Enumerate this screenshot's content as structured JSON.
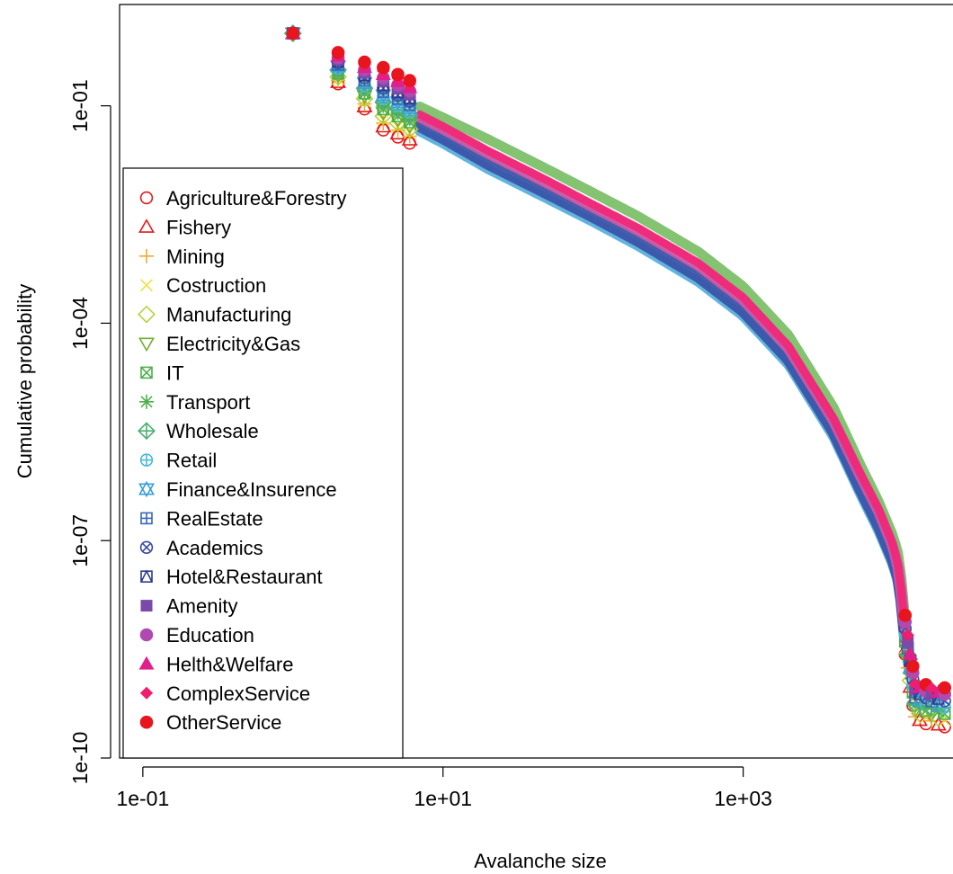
{
  "chart_data": {
    "type": "scatter",
    "xlabel": "Avalanche size",
    "ylabel": "Cumulative probability",
    "x_scale": "log10",
    "y_scale": "log10",
    "xlim": [
      0.07,
      25000
    ],
    "ylim": [
      1e-10,
      2.5
    ],
    "x_ticks": [
      {
        "value": 0.1,
        "label": "1e-01"
      },
      {
        "value": 10,
        "label": "1e+01"
      },
      {
        "value": 1000,
        "label": "1e+03"
      }
    ],
    "y_ticks": [
      {
        "value": 1e-10,
        "label": "1e-10"
      },
      {
        "value": 1e-07,
        "label": "1e-07"
      },
      {
        "value": 0.0001,
        "label": "1e-04"
      },
      {
        "value": 0.1,
        "label": "1e-01"
      }
    ],
    "legend_position": "left",
    "grid": false,
    "series": [
      {
        "name": "Agriculture&Forestry",
        "color": "#e41a1c",
        "marker": "circle-open"
      },
      {
        "name": "Fishery",
        "color": "#e41a1c",
        "marker": "triangle-open"
      },
      {
        "name": "Mining",
        "color": "#f0a830",
        "marker": "plus"
      },
      {
        "name": "Costruction",
        "color": "#f0e040",
        "marker": "cross"
      },
      {
        "name": "Manufacturing",
        "color": "#b8d040",
        "marker": "diamond-open"
      },
      {
        "name": "Electricity&Gas",
        "color": "#70b030",
        "marker": "triangle-down-open"
      },
      {
        "name": "IT",
        "color": "#4daf4a",
        "marker": "square-cross"
      },
      {
        "name": "Transport",
        "color": "#4daf4a",
        "marker": "asterisk"
      },
      {
        "name": "Wholesale",
        "color": "#4db070",
        "marker": "diamond-plus"
      },
      {
        "name": "Retail",
        "color": "#4ab8d8",
        "marker": "circle-plus"
      },
      {
        "name": "Finance&Insurence",
        "color": "#3aa0d8",
        "marker": "star-of-david"
      },
      {
        "name": "RealEstate",
        "color": "#3768b8",
        "marker": "square-plus"
      },
      {
        "name": "Academics",
        "color": "#3a4aa0",
        "marker": "circle-cross"
      },
      {
        "name": "Hotel&Restaurant",
        "color": "#2e3a8c",
        "marker": "square-triangle"
      },
      {
        "name": "Amenity",
        "color": "#7b4aa8",
        "marker": "square-filled"
      },
      {
        "name": "Education",
        "color": "#b04ab0",
        "marker": "circle-filled"
      },
      {
        "name": "Helth&Welfare",
        "color": "#e0208a",
        "marker": "triangle-filled"
      },
      {
        "name": "ComplexService",
        "color": "#f01e6e",
        "marker": "diamond-filled"
      },
      {
        "name": "OtherService",
        "color": "#e8141e",
        "marker": "circle-filled"
      }
    ],
    "curves": {
      "x": [
        1,
        2,
        3,
        4,
        5,
        7,
        10,
        20,
        50,
        100,
        200,
        500,
        1000,
        2000,
        4000,
        6000,
        8000,
        10000,
        11000,
        12000,
        14000,
        20000
      ],
      "upper": [
        1.0,
        0.4,
        0.22,
        0.15,
        0.12,
        0.085,
        0.06,
        0.03,
        0.0115,
        0.0055,
        0.0026,
        0.00085,
        0.00028,
        6e-05,
        6e-06,
        1e-06,
        3e-07,
        1e-07,
        5e-08,
        7e-09,
        6e-10,
        5e-10
      ],
      "center": [
        1.0,
        0.33,
        0.19,
        0.125,
        0.1,
        0.07,
        0.048,
        0.022,
        0.0085,
        0.004,
        0.0019,
        0.00063,
        0.00021,
        4.5e-05,
        4.5e-06,
        8e-07,
        2.5e-07,
        8e-08,
        3.5e-08,
        5e-09,
        6e-10,
        5e-10
      ],
      "lower": [
        1.0,
        0.28,
        0.15,
        0.1,
        0.075,
        0.05,
        0.034,
        0.015,
        0.0058,
        0.0028,
        0.0013,
        0.00042,
        0.00014,
        3e-05,
        3e-06,
        5e-07,
        1.5e-07,
        5e-08,
        2.5e-08,
        4e-09,
        6e-10,
        5e-10
      ]
    }
  }
}
